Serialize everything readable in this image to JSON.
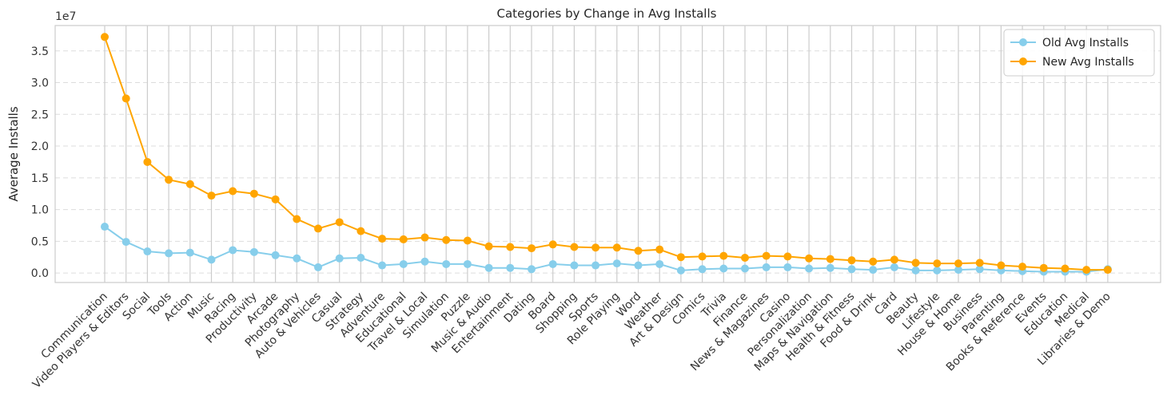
{
  "chart_data": {
    "type": "line",
    "title": "Categories by Change in Avg Installs",
    "xlabel": "",
    "ylabel": "Average Installs",
    "y_scale_label": "1e7",
    "ylim": [
      -0.15,
      3.9
    ],
    "yticks": [
      "0.0",
      "0.5",
      "1.0",
      "1.5",
      "2.0",
      "2.5",
      "3.0",
      "3.5"
    ],
    "ytick_values": [
      0,
      0.5,
      1.0,
      1.5,
      2.0,
      2.5,
      3.0,
      3.5
    ],
    "grid": {
      "x": "solid",
      "y": "dashed"
    },
    "legend_position": "top-right",
    "categories": [
      "Communication",
      "Video Players & Editors",
      "Social",
      "Tools",
      "Action",
      "Music",
      "Racing",
      "Productivity",
      "Arcade",
      "Photography",
      "Auto & Vehicles",
      "Casual",
      "Strategy",
      "Adventure",
      "Educational",
      "Travel & Local",
      "Simulation",
      "Puzzle",
      "Music & Audio",
      "Entertainment",
      "Dating",
      "Board",
      "Shopping",
      "Sports",
      "Role Playing",
      "Word",
      "Weather",
      "Art & Design",
      "Comics",
      "Trivia",
      "Finance",
      "News & Magazines",
      "Casino",
      "Personalization",
      "Maps & Navigation",
      "Health & Fitness",
      "Food & Drink",
      "Card",
      "Beauty",
      "Lifestyle",
      "House & Home",
      "Business",
      "Parenting",
      "Books & Reference",
      "Events",
      "Education",
      "Medical",
      "Libraries & Demo"
    ],
    "series": [
      {
        "name": "Old Avg Installs",
        "color": "#87ceeb",
        "values": [
          0.73,
          0.49,
          0.34,
          0.31,
          0.32,
          0.21,
          0.36,
          0.33,
          0.28,
          0.23,
          0.09,
          0.23,
          0.24,
          0.12,
          0.14,
          0.18,
          0.14,
          0.14,
          0.08,
          0.08,
          0.06,
          0.14,
          0.12,
          0.12,
          0.15,
          0.12,
          0.14,
          0.04,
          0.06,
          0.07,
          0.07,
          0.09,
          0.09,
          0.07,
          0.08,
          0.06,
          0.05,
          0.09,
          0.04,
          0.04,
          0.05,
          0.06,
          0.04,
          0.03,
          0.02,
          0.02,
          0.02,
          0.06
        ]
      },
      {
        "name": "New Avg Installs",
        "color": "#ffa500",
        "values": [
          3.72,
          2.75,
          1.75,
          1.47,
          1.4,
          1.22,
          1.29,
          1.25,
          1.16,
          0.85,
          0.7,
          0.8,
          0.66,
          0.54,
          0.53,
          0.56,
          0.52,
          0.51,
          0.42,
          0.41,
          0.39,
          0.45,
          0.41,
          0.4,
          0.4,
          0.35,
          0.37,
          0.25,
          0.26,
          0.27,
          0.24,
          0.27,
          0.26,
          0.23,
          0.22,
          0.2,
          0.18,
          0.21,
          0.16,
          0.15,
          0.15,
          0.16,
          0.12,
          0.1,
          0.08,
          0.07,
          0.05,
          0.05
        ]
      }
    ]
  }
}
